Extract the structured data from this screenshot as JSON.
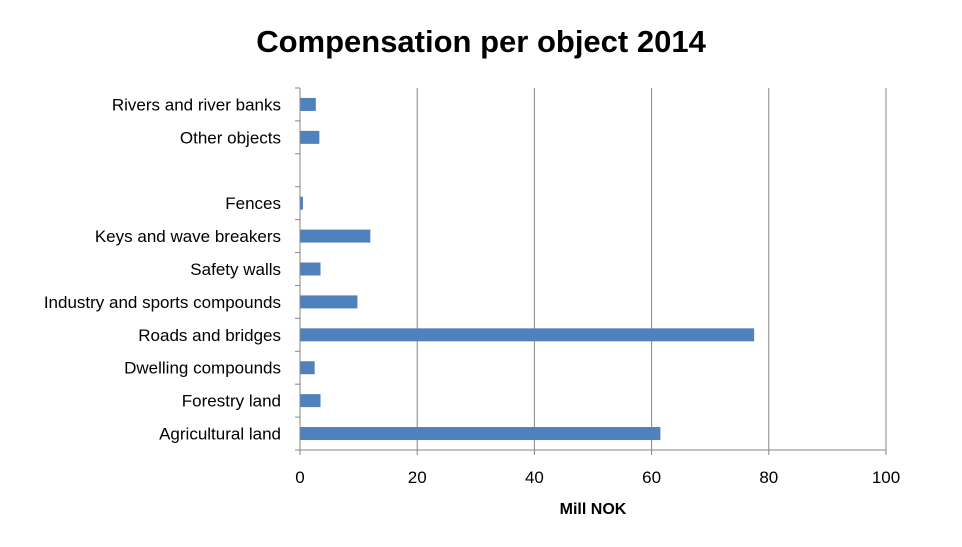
{
  "chart_data": {
    "type": "bar",
    "orientation": "horizontal",
    "title": "Compensation per object 2014",
    "xlabel": "Mill NOK",
    "ylabel": "",
    "xlim": [
      0,
      100
    ],
    "xticks": [
      0,
      20,
      40,
      60,
      80,
      100
    ],
    "grid": true,
    "categories": [
      "Agricultural land",
      "Forestry land",
      "Dwelling compounds",
      "Roads and bridges",
      "Industry and sports compounds",
      "Safety walls",
      "Keys and wave breakers",
      "Fences",
      "",
      "Other objects",
      "Rivers and river banks"
    ],
    "values": [
      61.5,
      3.5,
      2.5,
      77.5,
      9.8,
      3.5,
      12.0,
      0.5,
      null,
      3.3,
      2.7
    ],
    "bar_color": "#4F81BD"
  }
}
